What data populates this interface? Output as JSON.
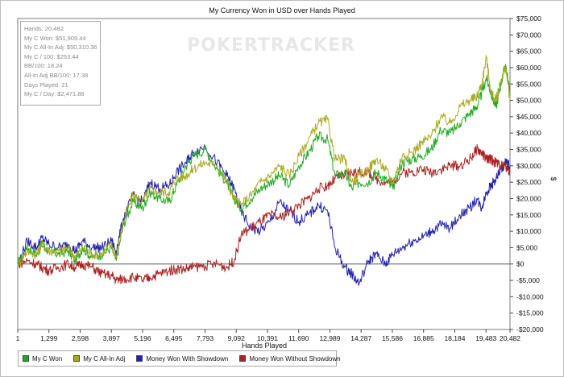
{
  "chart_data": {
    "type": "line",
    "title": "My Currency Won in USD over Hands Played",
    "xlabel": "Hands Played",
    "ylabel": "$",
    "xlim": [
      1,
      20482
    ],
    "ylim": [
      -20000,
      75000
    ],
    "x_ticks": [
      1,
      1299,
      2598,
      3897,
      5196,
      6495,
      7793,
      9092,
      10391,
      11690,
      12989,
      14287,
      15586,
      16885,
      18184,
      19483,
      20482
    ],
    "x_tick_labels": [
      "1",
      "1,299",
      "2,598",
      "3,897",
      "5,196",
      "6,495",
      "7,793",
      "9,092",
      "10,391",
      "11,690",
      "12,989",
      "14,287",
      "15,586",
      "16,885",
      "18,184",
      "19,483",
      "20,482"
    ],
    "y_ticks": [
      -20000,
      -15000,
      -10000,
      -5000,
      0,
      5000,
      10000,
      15000,
      20000,
      25000,
      30000,
      35000,
      40000,
      45000,
      50000,
      55000,
      60000,
      65000,
      70000,
      75000
    ],
    "y_tick_labels": [
      "-$20,000",
      "-$15,000",
      "-$10,000",
      "-$5,000",
      "$0",
      "$5,000",
      "$10,000",
      "$15,000",
      "$20,000",
      "$25,000",
      "$30,000",
      "$35,000",
      "$40,000",
      "$45,000",
      "$50,000",
      "$55,000",
      "$60,000",
      "$65,000",
      "$70,000",
      "$75,000"
    ],
    "grid": false,
    "legend_position": "bottom-left",
    "series": [
      {
        "name": "My C Won",
        "color": "#22aa22",
        "x": [
          1,
          400,
          800,
          1000,
          1300,
          1700,
          2100,
          2400,
          2700,
          3100,
          3500,
          3900,
          4100,
          4400,
          4800,
          5200,
          5500,
          5900,
          6300,
          6600,
          7000,
          7300,
          7800,
          8300,
          8700,
          9000,
          9300,
          9700,
          10100,
          10500,
          10900,
          11300,
          11700,
          12100,
          12500,
          12900,
          13200,
          13600,
          13900,
          14200,
          14600,
          14900,
          15300,
          15600,
          16000,
          16400,
          16800,
          17200,
          17600,
          18000,
          18400,
          18800,
          19100,
          19300,
          19500,
          19700,
          19900,
          20100,
          20300,
          20482
        ],
        "y": [
          0,
          5000,
          3000,
          6000,
          4000,
          3000,
          4000,
          1000,
          5000,
          2000,
          3000,
          5000,
          1000,
          12000,
          19000,
          17000,
          22000,
          20000,
          19000,
          24000,
          30000,
          33000,
          35000,
          29000,
          25000,
          20000,
          17000,
          20000,
          23000,
          25000,
          27000,
          24000,
          30000,
          34000,
          39000,
          38000,
          27000,
          28000,
          23000,
          25000,
          25000,
          28000,
          26000,
          23000,
          31000,
          32000,
          33000,
          35000,
          41000,
          40000,
          43000,
          46000,
          48000,
          52000,
          57000,
          52000,
          48000,
          55000,
          61000,
          51909
        ]
      },
      {
        "name": "My C All-In Adj",
        "color": "#aaaa22",
        "x": [
          1,
          400,
          800,
          1000,
          1300,
          1700,
          2100,
          2400,
          2700,
          3100,
          3500,
          3900,
          4100,
          4400,
          4800,
          5200,
          5500,
          5900,
          6300,
          6600,
          7000,
          7300,
          7800,
          8300,
          8700,
          9000,
          9300,
          9700,
          10100,
          10500,
          10900,
          11300,
          11700,
          12100,
          12500,
          12900,
          13200,
          13600,
          13900,
          14200,
          14600,
          14900,
          15300,
          15600,
          16000,
          16400,
          16800,
          17200,
          17600,
          18000,
          18400,
          18800,
          19100,
          19300,
          19500,
          19700,
          19900,
          20100,
          20300,
          20482
        ],
        "y": [
          0,
          4000,
          3000,
          6000,
          4000,
          4000,
          5000,
          2000,
          5000,
          3000,
          3000,
          6000,
          2000,
          13000,
          21000,
          19000,
          23000,
          22000,
          22000,
          26000,
          27000,
          29000,
          31000,
          30000,
          25000,
          20000,
          18000,
          21000,
          25000,
          27000,
          30000,
          27000,
          33000,
          38000,
          43000,
          44000,
          32000,
          32000,
          25000,
          27000,
          29000,
          32000,
          29000,
          25000,
          33000,
          34000,
          37000,
          39000,
          45000,
          43000,
          48000,
          50000,
          51000,
          55000,
          63000,
          52000,
          50000,
          56000,
          60000,
          50310
        ]
      },
      {
        "name": "Money Won With Showdown",
        "color": "#2222aa",
        "x": [
          1,
          400,
          800,
          1000,
          1300,
          1700,
          2100,
          2400,
          2700,
          3100,
          3500,
          3900,
          4100,
          4400,
          4800,
          5200,
          5500,
          5900,
          6300,
          6600,
          7000,
          7300,
          7800,
          8300,
          8700,
          9000,
          9300,
          9700,
          10100,
          10500,
          10900,
          11300,
          11700,
          12100,
          12500,
          12900,
          13200,
          13600,
          13900,
          14200,
          14600,
          14900,
          15300,
          15600,
          16000,
          16400,
          16800,
          17200,
          17600,
          18000,
          18400,
          18800,
          19100,
          19300,
          19500,
          19700,
          19900,
          20100,
          20300,
          20482
        ],
        "y": [
          0,
          7000,
          5000,
          8000,
          6000,
          5000,
          6000,
          4000,
          7000,
          5000,
          5000,
          7000,
          4000,
          14000,
          21000,
          19000,
          25000,
          23000,
          24000,
          28000,
          31000,
          34000,
          36000,
          31000,
          27000,
          23000,
          16000,
          11000,
          10000,
          13000,
          19000,
          16000,
          13000,
          15000,
          18000,
          16000,
          5000,
          -1000,
          -3000,
          -6000,
          1000,
          3000,
          0,
          3000,
          5000,
          7000,
          8000,
          10000,
          12000,
          11000,
          15000,
          17000,
          20000,
          17000,
          22000,
          24000,
          26000,
          29000,
          31000,
          30000
        ]
      },
      {
        "name": "Money Won Without Showdown",
        "color": "#aa2222",
        "x": [
          1,
          400,
          800,
          1000,
          1300,
          1700,
          2100,
          2400,
          2700,
          3100,
          3500,
          3900,
          4100,
          4400,
          4800,
          5200,
          5500,
          5900,
          6300,
          6600,
          7000,
          7300,
          7800,
          8300,
          8700,
          9000,
          9300,
          9700,
          10100,
          10500,
          10900,
          11300,
          11700,
          12100,
          12500,
          12900,
          13200,
          13600,
          13900,
          14200,
          14600,
          14900,
          15300,
          15600,
          16000,
          16400,
          16800,
          17200,
          17600,
          18000,
          18400,
          18800,
          19100,
          19300,
          19500,
          19700,
          19900,
          20100,
          20300,
          20482
        ],
        "y": [
          0,
          1000,
          0,
          -1000,
          -2000,
          -1000,
          0,
          -1000,
          0,
          -1000,
          -3000,
          -3500,
          -5000,
          -4500,
          -4000,
          -5000,
          -4000,
          -3000,
          -2000,
          -1500,
          -1500,
          -1000,
          -500,
          0,
          -1000,
          1000,
          9000,
          11000,
          13000,
          15000,
          14000,
          16000,
          18000,
          20000,
          23000,
          24000,
          26000,
          27000,
          28000,
          28000,
          28000,
          26000,
          25000,
          25000,
          28000,
          28000,
          29000,
          28000,
          29000,
          30000,
          30000,
          32000,
          35000,
          34000,
          32000,
          32000,
          31000,
          30000,
          30000,
          28000
        ]
      }
    ]
  },
  "stats_box": [
    "Hands: 20,482",
    "My C Won: $51,909.44",
    "My C All-In Adj: $50,310.36",
    "My C / 100: $253.44",
    "BB/100: 18.24",
    "All-In Adj BB/100: 17.38",
    "Days Played: 21",
    "My C / Day: $2,471.88"
  ],
  "watermark": "POKERTRACKER",
  "legend": [
    {
      "label": "My C Won",
      "color": "#22aa22"
    },
    {
      "label": "My C All-In Adj",
      "color": "#aaaa22"
    },
    {
      "label": "Money Won With Showdown",
      "color": "#2222aa"
    },
    {
      "label": "Money Won Without Showdown",
      "color": "#aa2222"
    }
  ]
}
